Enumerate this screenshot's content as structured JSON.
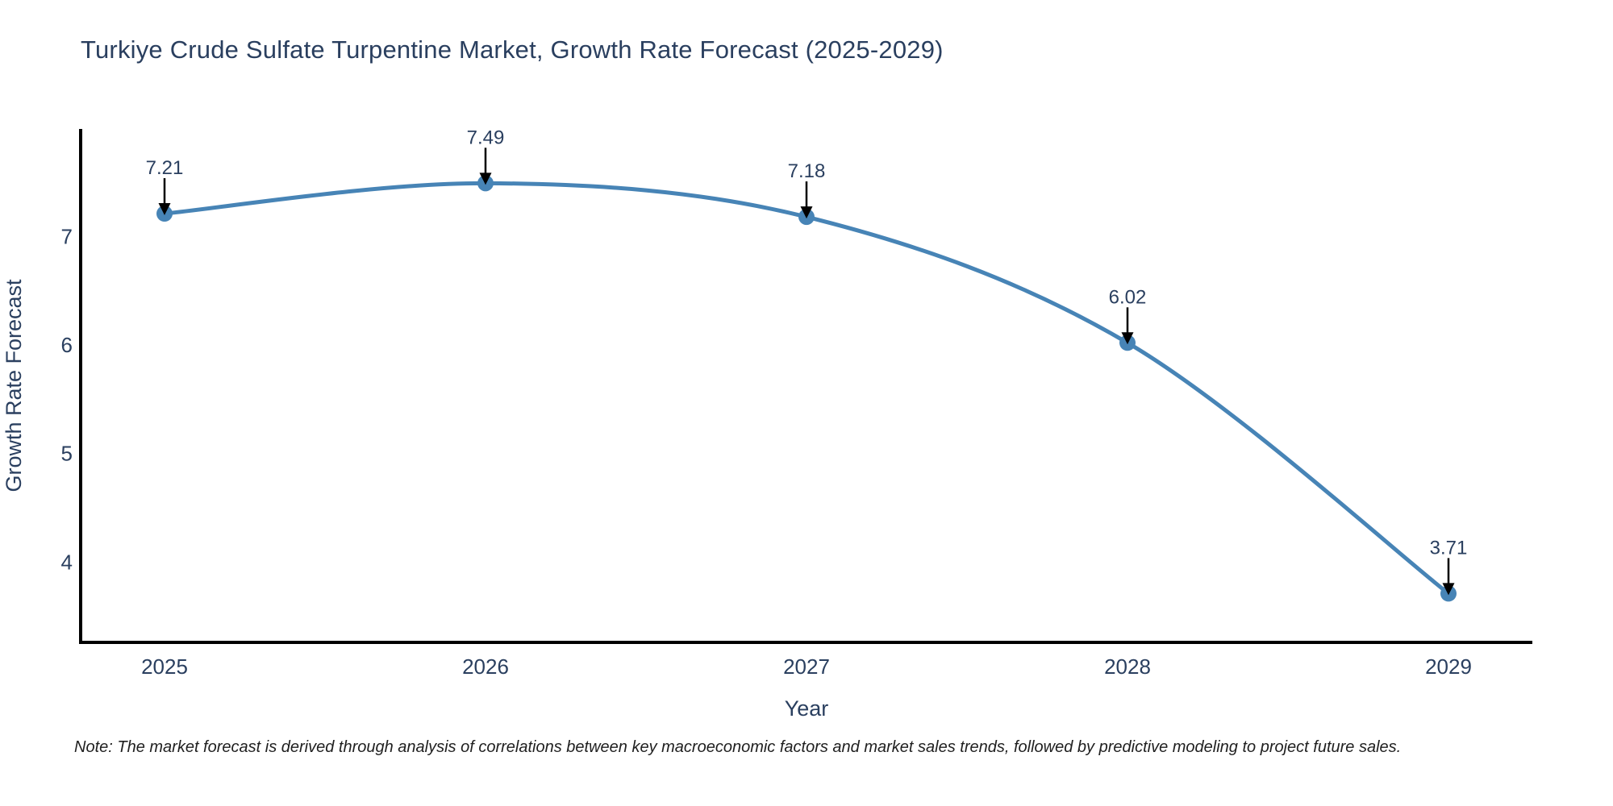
{
  "chart_data": {
    "type": "line",
    "title": "Turkiye Crude Sulfate Turpentine Market, Growth Rate Forecast (2025-2029)",
    "xlabel": "Year",
    "ylabel": "Growth Rate Forecast",
    "x": [
      "2025",
      "2026",
      "2027",
      "2028",
      "2029"
    ],
    "y": [
      7.21,
      7.49,
      7.18,
      6.02,
      3.71
    ],
    "point_labels": [
      "7.21",
      "7.49",
      "7.18",
      "6.02",
      "3.71"
    ],
    "series": [
      {
        "name": "Growth Rate Forecast",
        "values": [
          7.21,
          7.49,
          7.18,
          6.02,
          3.71
        ]
      }
    ],
    "y_ticks": [
      7,
      6,
      5,
      4
    ],
    "x_ticks": [
      "2025",
      "2026",
      "2027",
      "2028",
      "2029"
    ],
    "ylim": [
      3.26,
      7.99
    ],
    "line_shape": "spline",
    "grid": false,
    "legend": "none",
    "colors": {
      "line": "#4784b6",
      "marker": "#4784b6",
      "axis": "#000000",
      "text": "#2a3f5f",
      "annotation_arrow": "#000000",
      "note": "#1f1f1f",
      "background": "#ffffff"
    }
  },
  "note": "Note: The market forecast is derived through analysis of correlations between key macroeconomic factors and market sales trends, followed by predictive modeling to project future sales."
}
